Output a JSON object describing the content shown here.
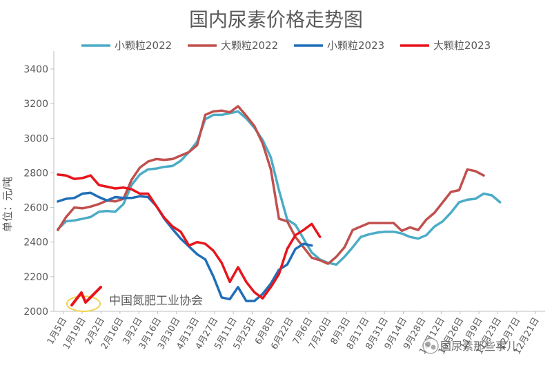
{
  "chart_data": {
    "type": "line",
    "title": "国内尿素价格走势图",
    "ylabel": "单位：元/吨",
    "ylim": [
      2000,
      3400
    ],
    "yticks": [
      2000,
      2200,
      2400,
      2600,
      2800,
      3000,
      3200,
      3400
    ],
    "xticks": [
      "1月5日",
      "1月19日",
      "2月2日",
      "2月16日",
      "3月2日",
      "3月16日",
      "3月30日",
      "4月13日",
      "4月27日",
      "5月11日",
      "5月25日",
      "6月8日",
      "6月22日",
      "7月6日",
      "7月20日",
      "8月3日",
      "8月17日",
      "8月31日",
      "9月14日",
      "9月28日",
      "10月12日",
      "10月26日",
      "11月9日",
      "11月23日",
      "12月7日",
      "12月21日"
    ],
    "grid": false,
    "legend_position": "top",
    "series": [
      {
        "name": "小颗粒2022",
        "color": "#4bacc6",
        "values": [
          2475,
          2520,
          2525,
          2535,
          2545,
          2575,
          2580,
          2575,
          2620,
          2730,
          2790,
          2820,
          2825,
          2835,
          2840,
          2870,
          2920,
          2980,
          3110,
          3135,
          3135,
          3145,
          3155,
          3115,
          3060,
          2990,
          2890,
          2700,
          2530,
          2500,
          2420,
          2340,
          2300,
          2280,
          2270,
          2315,
          2370,
          2430,
          2445,
          2455,
          2460,
          2460,
          2450,
          2430,
          2420,
          2440,
          2490,
          2520,
          2570,
          2630,
          2645,
          2650,
          2680,
          2670,
          2630
        ]
      },
      {
        "name": "大颗粒2022",
        "color": "#c0504d",
        "values": [
          2470,
          2545,
          2600,
          2595,
          2605,
          2620,
          2640,
          2635,
          2650,
          2760,
          2830,
          2865,
          2880,
          2875,
          2880,
          2900,
          2920,
          2960,
          3135,
          3155,
          3160,
          3150,
          3185,
          3130,
          3070,
          2970,
          2820,
          2535,
          2520,
          2430,
          2370,
          2310,
          2295,
          2275,
          2315,
          2370,
          2470,
          2490,
          2510,
          2510,
          2510,
          2510,
          2465,
          2485,
          2470,
          2530,
          2570,
          2630,
          2690,
          2700,
          2820,
          2810,
          2785
        ]
      },
      {
        "name": "小颗粒2023",
        "color": "#1f6eb8",
        "values": [
          2635,
          2650,
          2655,
          2680,
          2685,
          2660,
          2640,
          2660,
          2655,
          2655,
          2665,
          2660,
          2610,
          2535,
          2475,
          2420,
          2375,
          2330,
          2300,
          2200,
          2080,
          2070,
          2140,
          2060,
          2060,
          2100,
          2160,
          2240,
          2270,
          2360,
          2390,
          2380
        ]
      },
      {
        "name": "大颗粒2023",
        "color": "#e8141b",
        "values": [
          2790,
          2785,
          2765,
          2770,
          2785,
          2730,
          2720,
          2710,
          2715,
          2705,
          2680,
          2680,
          2610,
          2540,
          2490,
          2460,
          2380,
          2400,
          2390,
          2350,
          2280,
          2170,
          2255,
          2170,
          2110,
          2075,
          2140,
          2215,
          2360,
          2440,
          2470,
          2505,
          2430
        ]
      }
    ]
  },
  "watermark": {
    "org_name": "中国氮肥工业协会",
    "wechat_text": "国尿素那些事儿"
  }
}
